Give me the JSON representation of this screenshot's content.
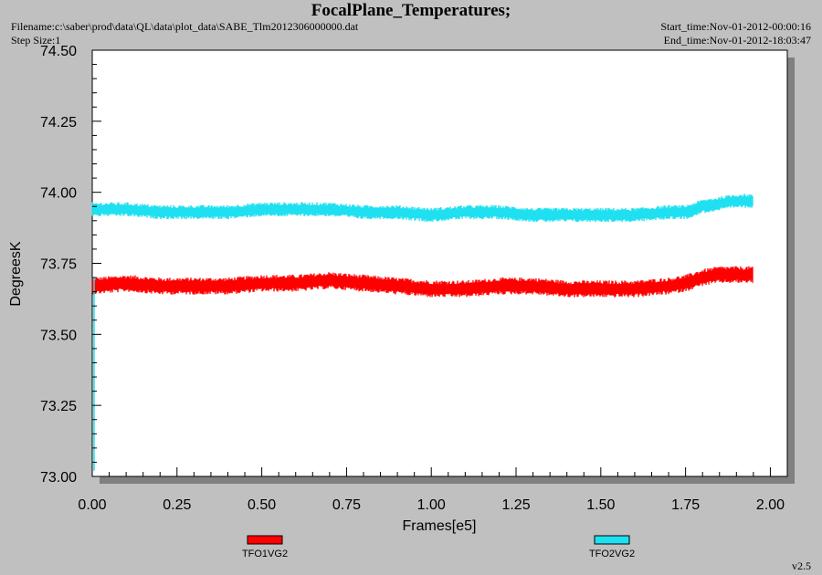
{
  "header": {
    "title": "FocalPlane_Temperatures;",
    "filename": "Filename:c:\\saber\\prod\\data\\QL\\data\\plot_data\\SABE_Tlm2012306000000.dat",
    "step_size": "Step Size:1",
    "start_time": "Start_time:Nov-01-2012-00:00:16",
    "end_time": "End_time:Nov-01-2012-18:03:47"
  },
  "footer": {
    "version": "v2.5"
  },
  "colors": {
    "background": "#c0c0c0",
    "plot_background": "#ffffff",
    "series_1": "#ff0000",
    "series_2": "#1ee0f0"
  },
  "chart_data": {
    "type": "line",
    "title": "FocalPlane_Temperatures;",
    "xlabel": "Frames[e5]",
    "ylabel": "DegreesK",
    "xlim": [
      0.0,
      2.05
    ],
    "ylim": [
      73.0,
      74.5
    ],
    "x_ticks": [
      "0.00",
      "0.25",
      "0.50",
      "0.75",
      "1.00",
      "1.25",
      "1.50",
      "1.75",
      "2.00"
    ],
    "y_ticks": [
      "73.00",
      "73.25",
      "73.50",
      "73.75",
      "74.00",
      "74.25",
      "74.50"
    ],
    "grid": false,
    "legend": "bottom",
    "series": [
      {
        "name": "TFO1VG2",
        "color": "#ff0000",
        "x": [
          0.0,
          0.1,
          0.2,
          0.3,
          0.4,
          0.5,
          0.6,
          0.7,
          0.8,
          0.9,
          1.0,
          1.1,
          1.2,
          1.3,
          1.4,
          1.5,
          1.6,
          1.7,
          1.75,
          1.8,
          1.85,
          1.9,
          1.95
        ],
        "y": [
          73.67,
          73.68,
          73.67,
          73.67,
          73.67,
          73.68,
          73.68,
          73.69,
          73.68,
          73.67,
          73.66,
          73.66,
          73.67,
          73.67,
          73.66,
          73.66,
          73.66,
          73.67,
          73.68,
          73.7,
          73.71,
          73.71,
          73.71
        ],
        "band_halfwidth": 0.03
      },
      {
        "name": "TFO2VG2",
        "color": "#1ee0f0",
        "x": [
          0.0,
          0.1,
          0.2,
          0.3,
          0.4,
          0.5,
          0.6,
          0.7,
          0.8,
          0.9,
          1.0,
          1.1,
          1.2,
          1.3,
          1.4,
          1.5,
          1.6,
          1.7,
          1.75,
          1.8,
          1.85,
          1.9,
          1.95
        ],
        "y": [
          73.94,
          73.94,
          73.93,
          73.93,
          73.93,
          73.94,
          73.94,
          73.94,
          73.93,
          73.93,
          73.92,
          73.93,
          73.93,
          73.92,
          73.92,
          73.92,
          73.92,
          73.93,
          73.93,
          73.95,
          73.96,
          73.97,
          73.97
        ],
        "band_halfwidth": 0.025
      }
    ]
  }
}
